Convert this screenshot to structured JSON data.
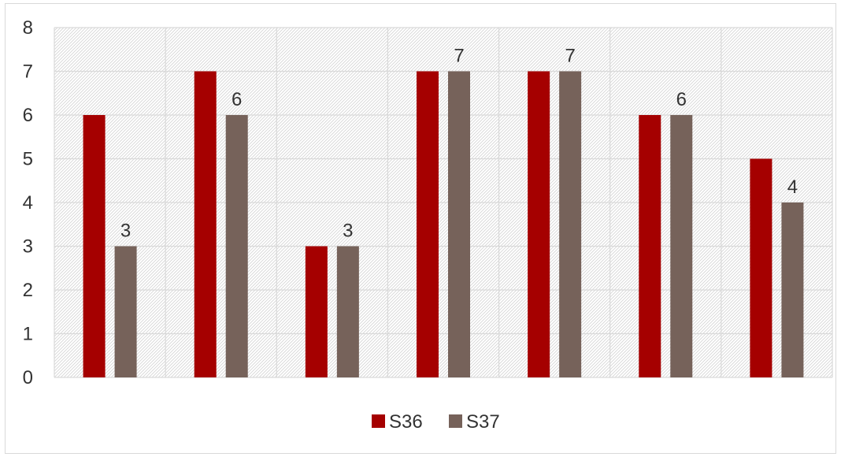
{
  "chart_data": {
    "type": "bar",
    "categories": [
      "",
      "",
      "",
      "",
      "",
      "",
      ""
    ],
    "series": [
      {
        "name": "S36",
        "color": "#a50000",
        "values": [
          6,
          7,
          3,
          7,
          7,
          6,
          5
        ]
      },
      {
        "name": "S37",
        "color": "#76625a",
        "values": [
          3,
          6,
          3,
          7,
          7,
          6,
          4
        ]
      }
    ],
    "data_labels_series": "S37",
    "ylim": [
      0,
      8
    ],
    "yticks": [
      0,
      1,
      2,
      3,
      4,
      5,
      6,
      7,
      8
    ],
    "grid": true,
    "plot_pattern": "diagonal-hatch",
    "legend": "bottom-center",
    "title": "",
    "xlabel": "",
    "ylabel": ""
  }
}
